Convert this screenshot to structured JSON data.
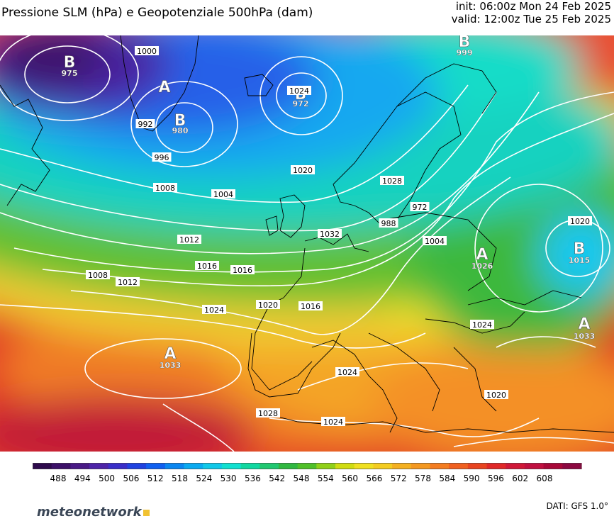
{
  "header": {
    "title": "Pressione SLM (hPa) e Geopotenziale 500hPa (dam)",
    "init": "init: 06:00z Mon 24 Feb 2025",
    "valid": "valid: 12:00z Tue 25 Feb 2025"
  },
  "footer": {
    "logo": "meteonetwork",
    "credits": "DATI: GFS 1.0°"
  },
  "legend": {
    "ticks": [
      "488",
      "494",
      "500",
      "506",
      "512",
      "518",
      "524",
      "530",
      "536",
      "542",
      "548",
      "554",
      "560",
      "566",
      "572",
      "578",
      "584",
      "590",
      "596",
      "602",
      "608"
    ],
    "colors": [
      "#2e0a4c",
      "#3c1068",
      "#4a1a86",
      "#4e24a8",
      "#3a2ec8",
      "#2042e0",
      "#1060f0",
      "#0a86f0",
      "#0aaaf0",
      "#10c8e8",
      "#10e0d0",
      "#10d8a0",
      "#20c870",
      "#30b840",
      "#50c028",
      "#90d018",
      "#d0dc10",
      "#f0e020",
      "#f4cc20",
      "#f4b020",
      "#f49820",
      "#f47c20",
      "#f06020",
      "#e84420",
      "#e02828",
      "#d01838",
      "#c01040",
      "#a80838",
      "#8c0840"
    ]
  },
  "pressure_systems": [
    {
      "kind": "B",
      "value": "975"
    },
    {
      "kind": "A",
      "value": ""
    },
    {
      "kind": "B",
      "value": "980"
    },
    {
      "kind": "B",
      "value": "972"
    },
    {
      "kind": "B",
      "value": "999"
    },
    {
      "kind": "A",
      "value": "1026"
    },
    {
      "kind": "B",
      "value": "1015"
    },
    {
      "kind": "A",
      "value": "1033"
    },
    {
      "kind": "A",
      "value": "1033"
    }
  ],
  "isobar_labels": [
    "1000",
    "992",
    "996",
    "1004",
    "1008",
    "1012",
    "1016",
    "1020",
    "1024",
    "1028",
    "1032",
    "988",
    "972",
    "1004",
    "1008",
    "1012",
    "1016",
    "1020",
    "1024",
    "1024",
    "1024",
    "1028",
    "1020",
    "1016",
    "1020",
    "1024"
  ]
}
